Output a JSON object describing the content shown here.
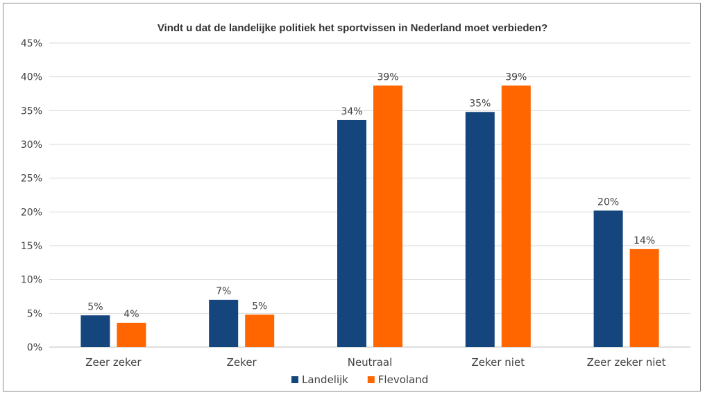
{
  "chart_data": {
    "type": "bar",
    "title": "Vindt u dat de landelijke politiek het sportvissen in Nederland moet verbieden?",
    "categories": [
      "Zeer zeker",
      "Zeker",
      "Neutraal",
      "Zeker niet",
      "Zeer zeker niet"
    ],
    "series": [
      {
        "name": "Landelijk",
        "color": "#14467d",
        "values": [
          4.7,
          7.0,
          33.6,
          34.8,
          20.2
        ],
        "labels": [
          "5%",
          "7%",
          "34%",
          "35%",
          "20%"
        ]
      },
      {
        "name": "Flevoland",
        "color": "#ff6600",
        "values": [
          3.6,
          4.8,
          38.7,
          38.7,
          14.5
        ],
        "labels": [
          "4%",
          "5%",
          "39%",
          "39%",
          "14%"
        ]
      }
    ],
    "ylim": [
      0,
      45
    ],
    "ytick_labels": [
      "0%",
      "5%",
      "10%",
      "15%",
      "20%",
      "25%",
      "30%",
      "35%",
      "40%",
      "45%"
    ],
    "grid": true,
    "legend_position": "bottom",
    "xlabel": "",
    "ylabel": ""
  }
}
